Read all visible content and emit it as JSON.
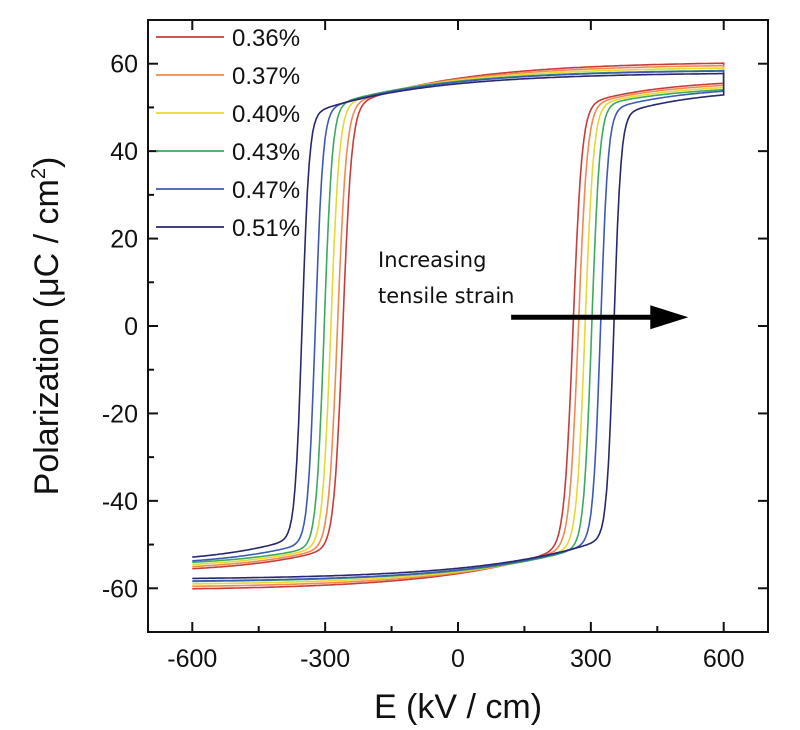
{
  "chart_data": {
    "type": "line",
    "xlabel": "E (kV / cm)",
    "ylabel": "Polarization (μC / cm",
    "ylabel_sup": "2",
    "ylabel_tail": ")",
    "xlim": [
      -700,
      700
    ],
    "ylim": [
      -70,
      70
    ],
    "x_ticks": [
      -600,
      -300,
      0,
      300,
      600
    ],
    "y_ticks": [
      60,
      40,
      20,
      0,
      -20,
      -40,
      -60
    ],
    "grid": false,
    "legend_position": "top-left",
    "annotation_lines": [
      "Increasing",
      "tensile strain"
    ],
    "annotation_arrow": {
      "from": [
        120,
        2
      ],
      "to": [
        520,
        2
      ]
    },
    "series": [
      {
        "name": "0.36%",
        "color": "#c83c3c",
        "coercive_field": 260,
        "saturation": 56.5,
        "jump_top": 50,
        "slope": 20
      },
      {
        "name": "0.37%",
        "color": "#f08a50",
        "coercive_field": 272,
        "saturation": 56.0,
        "jump_top": 50,
        "slope": 20
      },
      {
        "name": "0.40%",
        "color": "#e8d832",
        "coercive_field": 287,
        "saturation": 55.5,
        "jump_top": 50,
        "slope": 19
      },
      {
        "name": "0.43%",
        "color": "#3caa5a",
        "coercive_field": 302,
        "saturation": 55.0,
        "jump_top": 50,
        "slope": 18
      },
      {
        "name": "0.47%",
        "color": "#3c5ab4",
        "coercive_field": 322,
        "saturation": 55.0,
        "jump_top": 49,
        "slope": 17
      },
      {
        "name": "0.51%",
        "color": "#28286e",
        "coercive_field": 352,
        "saturation": 54.5,
        "jump_top": 48,
        "slope": 16
      }
    ]
  }
}
